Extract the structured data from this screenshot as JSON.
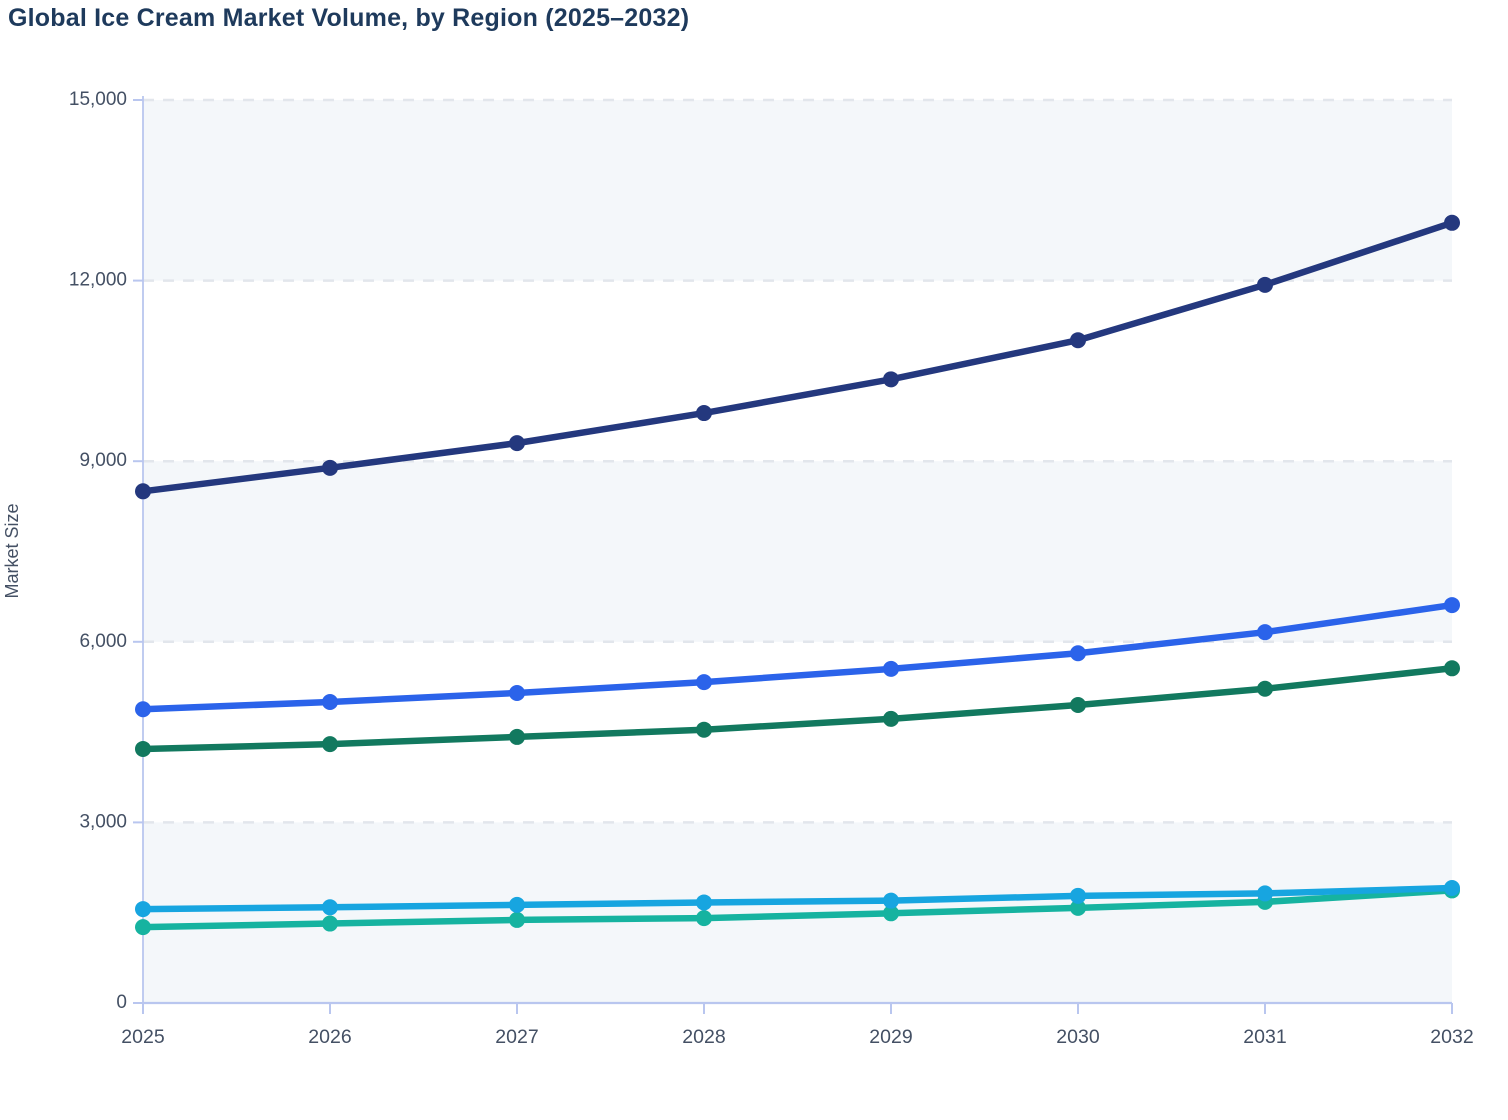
{
  "title": "Global Ice Cream Market Volume, by Region (2025–2032)",
  "y_axis": {
    "label": "Market Size",
    "ticks": [
      "0",
      "3,000",
      "6,000",
      "9,000",
      "12,000",
      "15,000"
    ],
    "tick_values": [
      0,
      3000,
      6000,
      9000,
      12000,
      15000
    ]
  },
  "x_axis": {
    "ticks": [
      "2025",
      "2026",
      "2027",
      "2028",
      "2029",
      "2030",
      "2031",
      "2032"
    ]
  },
  "colors": {
    "title_text": "#1e3a5c",
    "tick_text": "#44506427",
    "axis_label_text": "#445064",
    "axis_line": "#b9c6ef",
    "gridline": "#e2e6ec",
    "band_fill": "#f4f7fa",
    "series_navy": "#24387e",
    "series_blue": "#2b63ea",
    "series_green": "#12795f",
    "series_cyan": "#17a5e0",
    "series_teal": "#16b3a0"
  },
  "chart_data": {
    "type": "line",
    "title": "Global Ice Cream Market Volume, by Region (2025–2032)",
    "xlabel": "",
    "ylabel": "Market Size",
    "ylim": [
      0,
      15000
    ],
    "x": [
      2025,
      2026,
      2027,
      2028,
      2029,
      2030,
      2031,
      2032
    ],
    "series": [
      {
        "name": "series-navy",
        "color": "#24387e",
        "marker": "circle",
        "values": [
          8500,
          8890,
          9300,
          9800,
          10360,
          11010,
          11930,
          12960
        ]
      },
      {
        "name": "series-blue",
        "color": "#2b63ea",
        "marker": "circle",
        "values": [
          4880,
          5000,
          5150,
          5330,
          5550,
          5810,
          6160,
          6610
        ]
      },
      {
        "name": "series-green",
        "color": "#12795f",
        "marker": "circle",
        "values": [
          4220,
          4300,
          4420,
          4540,
          4720,
          4950,
          5220,
          5560
        ]
      },
      {
        "name": "series-teal",
        "color": "#16b3a0",
        "marker": "circle",
        "values": [
          1260,
          1320,
          1380,
          1410,
          1490,
          1580,
          1680,
          1870
        ]
      },
      {
        "name": "series-cyan",
        "color": "#17a5e0",
        "marker": "circle",
        "values": [
          1560,
          1590,
          1630,
          1670,
          1700,
          1780,
          1820,
          1910
        ]
      }
    ],
    "legend": "none",
    "grid": "horizontal dashed lines every 3000",
    "background_bands": [
      [
        0,
        3000
      ],
      [
        6000,
        9000
      ],
      [
        12000,
        15000
      ]
    ]
  }
}
